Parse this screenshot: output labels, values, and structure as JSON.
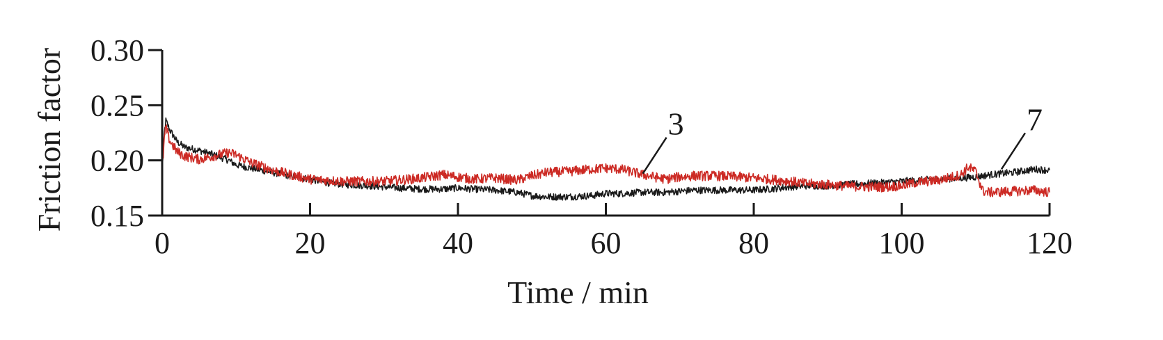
{
  "chart_data": {
    "type": "line",
    "title": "",
    "xlabel": "Time / min",
    "ylabel": "Friction factor",
    "xlim": [
      0,
      120
    ],
    "ylim": [
      0.15,
      0.3
    ],
    "xticks": [
      0,
      20,
      40,
      60,
      80,
      100,
      120
    ],
    "yticks": [
      0.15,
      0.2,
      0.25,
      0.3
    ],
    "xtick_labels": [
      "0",
      "20",
      "40",
      "60",
      "80",
      "100",
      "120"
    ],
    "ytick_labels": [
      "0.15",
      "0.20",
      "0.25",
      "0.30"
    ],
    "grid": false,
    "series": [
      {
        "color": "#1a1a1a",
        "annotation": "7",
        "annotation_x": 113.5,
        "annotation_y": 0.192,
        "x": [
          0,
          0.3,
          0.5,
          1,
          2,
          3,
          5,
          7,
          9,
          10,
          12,
          15,
          18,
          20,
          22,
          25,
          28,
          30,
          32,
          35,
          38,
          40,
          42,
          45,
          48,
          50,
          52,
          55,
          58,
          60,
          62,
          65,
          68,
          70,
          72,
          75,
          78,
          80,
          82,
          85,
          87,
          90,
          92,
          95,
          98,
          100,
          102,
          105,
          108,
          110,
          112,
          115,
          118,
          120
        ],
        "y": [
          0.193,
          0.225,
          0.236,
          0.228,
          0.217,
          0.212,
          0.209,
          0.205,
          0.2,
          0.196,
          0.193,
          0.189,
          0.185,
          0.183,
          0.18,
          0.178,
          0.177,
          0.176,
          0.175,
          0.174,
          0.174,
          0.175,
          0.174,
          0.173,
          0.171,
          0.168,
          0.167,
          0.167,
          0.168,
          0.17,
          0.17,
          0.171,
          0.171,
          0.172,
          0.173,
          0.173,
          0.173,
          0.173,
          0.174,
          0.176,
          0.177,
          0.177,
          0.178,
          0.179,
          0.18,
          0.181,
          0.182,
          0.183,
          0.184,
          0.185,
          0.187,
          0.189,
          0.192,
          0.191
        ]
      },
      {
        "color": "#cc2a24",
        "annotation": "3",
        "annotation_x": 65,
        "annotation_y": 0.188,
        "x": [
          0,
          0.3,
          0.5,
          1,
          2,
          3,
          5,
          7,
          9,
          10,
          12,
          15,
          18,
          20,
          22,
          25,
          28,
          30,
          32,
          35,
          38,
          40,
          42,
          45,
          48,
          50,
          52,
          55,
          58,
          60,
          62,
          65,
          68,
          70,
          72,
          75,
          78,
          80,
          82,
          85,
          87,
          90,
          92,
          95,
          98,
          100,
          102,
          105,
          108,
          109,
          110,
          111,
          112,
          115,
          118,
          120
        ],
        "y": [
          0.19,
          0.22,
          0.23,
          0.218,
          0.208,
          0.204,
          0.201,
          0.204,
          0.207,
          0.205,
          0.198,
          0.191,
          0.186,
          0.183,
          0.182,
          0.181,
          0.181,
          0.181,
          0.182,
          0.184,
          0.187,
          0.185,
          0.183,
          0.184,
          0.182,
          0.186,
          0.189,
          0.19,
          0.192,
          0.193,
          0.192,
          0.187,
          0.183,
          0.185,
          0.186,
          0.186,
          0.185,
          0.184,
          0.183,
          0.181,
          0.179,
          0.178,
          0.177,
          0.176,
          0.176,
          0.177,
          0.18,
          0.182,
          0.187,
          0.194,
          0.19,
          0.172,
          0.171,
          0.172,
          0.173,
          0.171
        ]
      }
    ]
  }
}
